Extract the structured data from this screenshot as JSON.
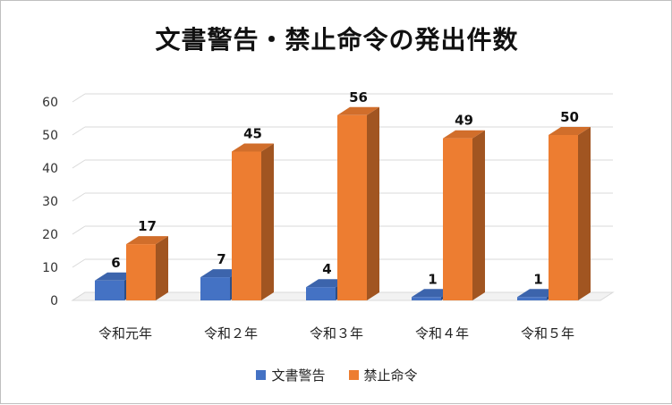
{
  "chart_data": {
    "type": "bar",
    "title": "文書警告・禁止命令の発出件数",
    "categories": [
      "令和元年",
      "令和２年",
      "令和３年",
      "令和４年",
      "令和５年"
    ],
    "series": [
      {
        "name": "文書警告",
        "values": [
          6,
          7,
          4,
          1,
          1
        ],
        "color": "#4472C4"
      },
      {
        "name": "禁止命令",
        "values": [
          17,
          45,
          56,
          49,
          50
        ],
        "color": "#ED7D31"
      }
    ],
    "y_ticks": [
      "0",
      "10",
      "20",
      "30",
      "40",
      "50",
      "60"
    ],
    "ylim": [
      0,
      60
    ],
    "grid": true,
    "legend_position": "bottom"
  }
}
